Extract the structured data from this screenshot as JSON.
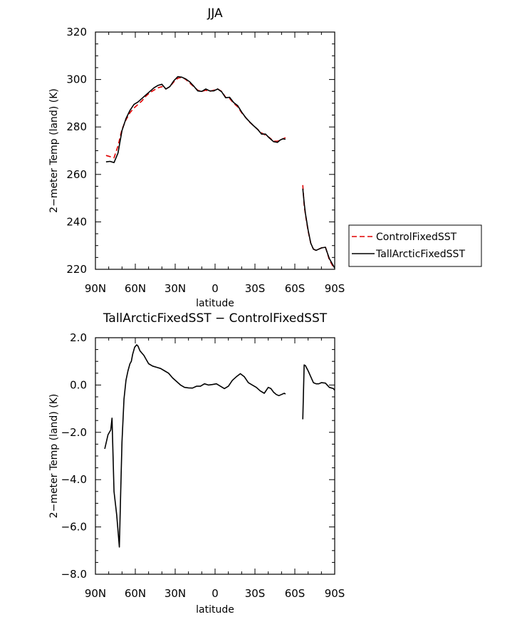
{
  "chart_data": [
    {
      "type": "line",
      "title": "JJA",
      "xlabel": "latitude",
      "ylabel": "2−meter Temp (land) (K)",
      "xlim": [
        90,
        -90
      ],
      "ylim": [
        220,
        320
      ],
      "x_ticks": [
        90,
        60,
        30,
        0,
        -30,
        -60,
        -90
      ],
      "x_tick_labels": [
        "90N",
        "60N",
        "30N",
        "0",
        "30S",
        "60S",
        "90S"
      ],
      "y_ticks": [
        220,
        240,
        260,
        280,
        300,
        320
      ],
      "y_tick_labels": [
        "220",
        "240",
        "260",
        "280",
        "300",
        "320"
      ],
      "legend": {
        "placement": "right",
        "entries": [
          "ControlFixedSST",
          "TallArcticFixedSST"
        ]
      },
      "series": [
        {
          "name": "ControlFixedSST",
          "color": "#e00000",
          "dash": true,
          "segments": [
            {
              "x": [
                82,
                79,
                76,
                73,
                70,
                67,
                64,
                61,
                58,
                55,
                52,
                49,
                46,
                43,
                40,
                37,
                34,
                31,
                28,
                25,
                22,
                19,
                16,
                13,
                10,
                7,
                4,
                1,
                -2,
                -5,
                -8,
                -11,
                -14,
                -17,
                -20,
                -23,
                -26,
                -29,
                -32,
                -35,
                -38,
                -41,
                -44,
                -47,
                -49,
                -51,
                -53
              ],
              "y": [
                268,
                267.5,
                267,
                272,
                279,
                283,
                286,
                288,
                289.5,
                291,
                293,
                294.5,
                295.5,
                296.5,
                297,
                296,
                297,
                299,
                300.5,
                301,
                300,
                298.5,
                297,
                295.5,
                295,
                295.5,
                295,
                295.5,
                296,
                295,
                292.5,
                292,
                290,
                288.5,
                286,
                284,
                282,
                280.5,
                279,
                277.5,
                276.5,
                275.5,
                274,
                274,
                274.5,
                275,
                275.5
              ]
            },
            {
              "x": [
                -66,
                -67,
                -68,
                -70,
                -72,
                -74,
                -76,
                -78,
                -80,
                -83,
                -86,
                -89,
                -90
              ],
              "y": [
                255.5,
                247,
                243,
                236,
                231,
                228.5,
                228,
                228.5,
                229,
                229.5,
                224,
                221,
                220.5
              ]
            }
          ]
        },
        {
          "name": "TallArcticFixedSST",
          "color": "#000000",
          "dash": false,
          "segments": [
            {
              "x": [
                82,
                79,
                76,
                73,
                70,
                67,
                64,
                61,
                58,
                55,
                52,
                49,
                46,
                43,
                40,
                37,
                34,
                31,
                28,
                25,
                22,
                19,
                16,
                13,
                10,
                7,
                4,
                1,
                -2,
                -5,
                -8,
                -11,
                -14,
                -17,
                -20,
                -23,
                -26,
                -29,
                -32,
                -35,
                -38,
                -41,
                -44,
                -47,
                -49,
                -51,
                -53
              ],
              "y": [
                265.3,
                265.5,
                265,
                269,
                278.5,
                283.5,
                287,
                289.5,
                290.5,
                292,
                293.5,
                295,
                296.5,
                297.5,
                298,
                296,
                297,
                299.5,
                301.2,
                301,
                300.2,
                299,
                297.2,
                295.2,
                295,
                296,
                295.2,
                295.2,
                296,
                294.8,
                292.3,
                292.5,
                290.3,
                289,
                286.3,
                284,
                282.2,
                280.5,
                279,
                277,
                277,
                275.3,
                273.8,
                273.5,
                274.5,
                275,
                274.8
              ]
            },
            {
              "x": [
                -66,
                -67,
                -68,
                -70,
                -72,
                -74,
                -76,
                -78,
                -80,
                -83,
                -86,
                -89,
                -90
              ],
              "y": [
                254,
                248,
                243.5,
                236.5,
                231,
                228.5,
                228,
                228.5,
                229,
                229.3,
                224.5,
                221.5,
                220.5
              ]
            }
          ]
        }
      ]
    },
    {
      "type": "line",
      "title": "TallArcticFixedSST − ControlFixedSST",
      "xlabel": "latitude",
      "ylabel": "2−meter Temp (land) (K)",
      "xlim": [
        90,
        -90
      ],
      "ylim": [
        -8.0,
        2.0
      ],
      "x_ticks": [
        90,
        60,
        30,
        0,
        -30,
        -60,
        -90
      ],
      "x_tick_labels": [
        "90N",
        "60N",
        "30N",
        "0",
        "30S",
        "60S",
        "90S"
      ],
      "y_ticks": [
        -8.0,
        -6.0,
        -4.0,
        -2.0,
        0.0,
        2.0
      ],
      "y_tick_labels": [
        "−8.0",
        "−6.0",
        "−4.0",
        "−2.0",
        "0.0",
        "2.0"
      ],
      "series": [
        {
          "color": "#000000",
          "dash": false,
          "segments": [
            {
              "x": [
                83,
                80.5,
                78.5,
                77.5,
                76,
                74,
                72,
                71,
                70,
                68.5,
                67,
                65.5,
                64,
                63,
                62,
                60.5,
                59,
                58,
                56.5,
                55,
                53.5,
                52,
                50,
                47,
                44,
                41,
                38,
                35,
                32,
                29,
                26,
                23,
                20,
                17,
                14,
                11,
                8,
                5,
                2,
                -1,
                -4,
                -7,
                -10,
                -13,
                -16,
                -19,
                -22,
                -25,
                -28,
                -31,
                -34,
                -37,
                -40,
                -42,
                -44,
                -46,
                -48,
                -50,
                -52,
                -53
              ],
              "y": [
                -2.7,
                -2.1,
                -1.9,
                -1.4,
                -4.5,
                -5.5,
                -6.85,
                -4.5,
                -2.4,
                -0.6,
                0.2,
                0.6,
                0.9,
                1.0,
                1.3,
                1.6,
                1.7,
                1.65,
                1.45,
                1.35,
                1.25,
                1.1,
                0.9,
                0.8,
                0.75,
                0.7,
                0.6,
                0.5,
                0.3,
                0.15,
                0.0,
                -0.1,
                -0.12,
                -0.13,
                -0.05,
                -0.05,
                0.05,
                0.0,
                0.02,
                0.05,
                -0.05,
                -0.15,
                -0.05,
                0.2,
                0.35,
                0.48,
                0.35,
                0.1,
                0.0,
                -0.1,
                -0.25,
                -0.35,
                -0.1,
                -0.15,
                -0.3,
                -0.4,
                -0.45,
                -0.4,
                -0.35,
                -0.38
              ]
            },
            {
              "x": [
                -66,
                -67,
                -68,
                -70,
                -72,
                -74,
                -76,
                -78,
                -80,
                -83,
                -86,
                -89,
                -90
              ],
              "y": [
                -1.45,
                0.85,
                0.82,
                0.6,
                0.35,
                0.1,
                0.05,
                0.05,
                0.1,
                0.08,
                -0.1,
                -0.15,
                -0.22
              ]
            }
          ]
        }
      ]
    }
  ]
}
